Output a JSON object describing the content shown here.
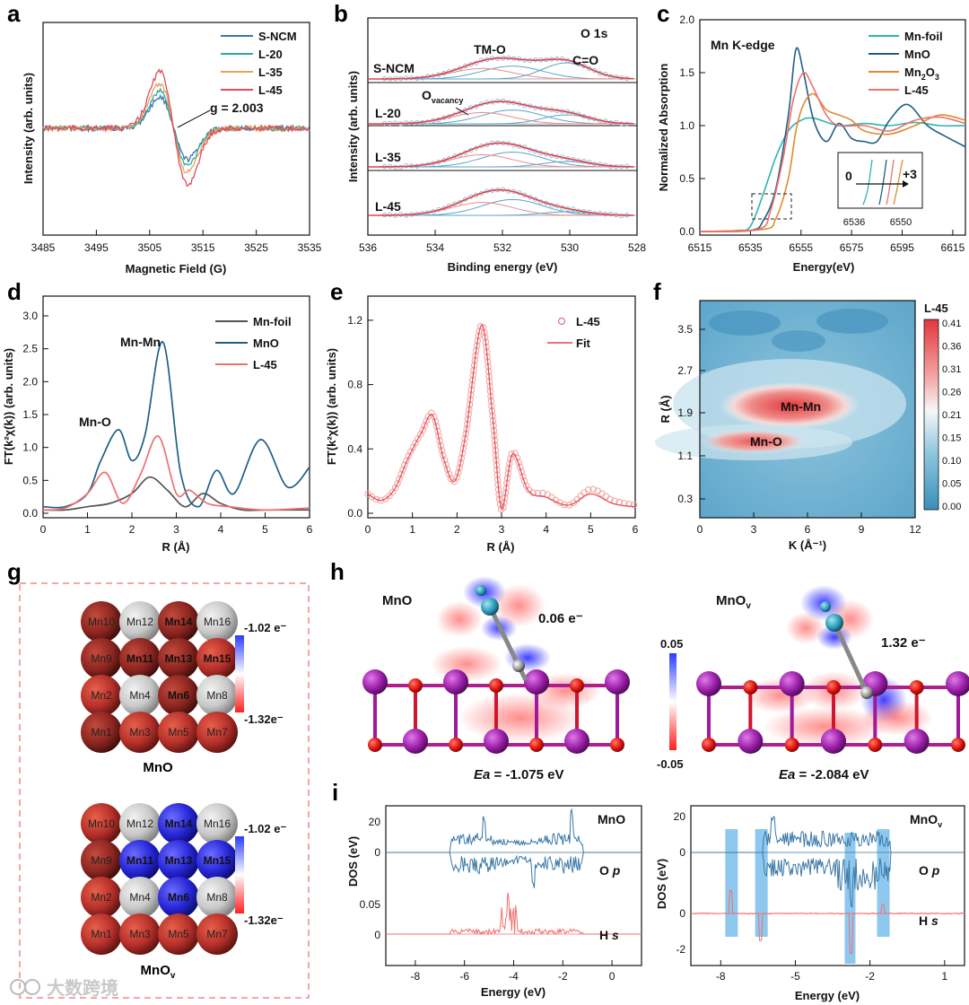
{
  "panels": {
    "a": {
      "label": "a",
      "xlabel": "Magnetic Field (G)",
      "ylabel": "Intensity (arb. units)",
      "xticks": [
        "3485",
        "3495",
        "3505",
        "3515",
        "3525",
        "3535"
      ],
      "legend": [
        "S-NCM",
        "L-20",
        "L-35",
        "L-45"
      ],
      "annotation": "g = 2.003"
    },
    "b": {
      "label": "b",
      "xlabel": "Binding energy (eV)",
      "ylabel": "Intensity (arb. units)",
      "xticks": [
        "536",
        "534",
        "532",
        "530",
        "528"
      ],
      "title": "O 1s",
      "samples": [
        "S-NCM",
        "L-20",
        "L-35",
        "L-45"
      ],
      "peak_tmo": "TM-O",
      "peak_co": "C=O",
      "vacancy": "O",
      "vacancy_sub": "vacancy"
    },
    "c": {
      "label": "c",
      "xlabel": "Energy(eV)",
      "ylabel": "Normalized Absorption",
      "xticks": [
        "6515",
        "6535",
        "6555",
        "6575",
        "6595",
        "6615"
      ],
      "yticks": [
        "0.0",
        "0.5",
        "1.0",
        "1.5",
        "2.0"
      ],
      "title": "Mn K-edge",
      "legend": [
        "Mn-foil",
        "MnO",
        "Mn",
        "L-45"
      ],
      "legend_mn2o3_sub2": "2",
      "legend_mn2o3_o": "O",
      "legend_mn2o3_sub3": "3",
      "inset_left": "0",
      "inset_right": "+3",
      "inset_ticks": [
        "6536",
        "6550"
      ]
    },
    "d": {
      "label": "d",
      "xlabel": "R (Å)",
      "ylabel": "FT(k²χ(k)) (arb. units)",
      "xticks": [
        "0",
        "1",
        "2",
        "3",
        "4",
        "5",
        "6"
      ],
      "yticks": [
        "0.0",
        "0.5",
        "1.0",
        "1.5",
        "2.0",
        "2.5",
        "3.0"
      ],
      "legend": [
        "Mn-foil",
        "MnO",
        "L-45"
      ],
      "peak1": "Mn-O",
      "peak2": "Mn-Mn"
    },
    "e": {
      "label": "e",
      "xlabel": "R (Å)",
      "ylabel": "FT(k²χ(k)) (arb. units)",
      "xticks": [
        "0",
        "1",
        "2",
        "3",
        "4",
        "5",
        "6"
      ],
      "yticks": [
        "0.0",
        "0.4",
        "0.8",
        "1.2"
      ],
      "legend": [
        "L-45",
        "Fit"
      ]
    },
    "f": {
      "label": "f",
      "xlabel": "K (Å⁻¹)",
      "ylabel": "R (Å)",
      "xticks": [
        "0",
        "3",
        "6",
        "9",
        "12"
      ],
      "yticks": [
        "3.5",
        "2.7",
        "1.9",
        "1.1",
        "0.3"
      ],
      "spot1": "Mn-Mn",
      "spot2": "Mn-O",
      "colorbar_title": "L-45",
      "colorbar_ticks": [
        "0.41",
        "0.36",
        "0.31",
        "0.26",
        "0.21",
        "0.15",
        "0.10",
        "0.05",
        "0.00"
      ]
    },
    "g": {
      "label": "g",
      "top_title": "MnO",
      "bottom_title": "MnO",
      "bottom_sub": "v",
      "scale_top": "-1.02 e⁻",
      "scale_bottom": "-1.32e⁻",
      "atoms": [
        "Mn10",
        "Mn12",
        "Mn14",
        "Mn16",
        "Mn9",
        "Mn11",
        "Mn13",
        "Mn15",
        "Mn2",
        "Mn4",
        "Mn6",
        "Mn8",
        "Mn1",
        "Mn3",
        "Mn5",
        "Mn7"
      ]
    },
    "h": {
      "label": "h",
      "left_title": "MnO",
      "right_title": "MnO",
      "right_sub": "v",
      "left_charge": "0.06 e⁻",
      "right_charge": "1.32 e⁻",
      "left_ea_label": "Ea",
      "left_ea_value": " = -1.075 eV",
      "right_ea_label": "Ea",
      "right_ea_value": " = -2.084 eV",
      "scale_top": "0.05",
      "scale_bottom": "-0.05"
    },
    "i": {
      "label": "i",
      "xlabel": "Energy (eV)",
      "ylabel": "DOS (eV)",
      "left_title": "MnO",
      "right_title": "MnO",
      "right_sub": "v",
      "op_label": "O ",
      "op_italic": "p",
      "hs_label": "H ",
      "hs_italic": "s",
      "xticks": [
        "-8",
        "-6",
        "-4",
        "-2",
        "0"
      ],
      "xticks_right": [
        "-8",
        "-5",
        "-2",
        "1"
      ],
      "left_yticks": [
        "20",
        "0",
        "0.05",
        "0"
      ],
      "right_yticks": [
        "20",
        "0",
        "0",
        "-2"
      ]
    }
  },
  "watermark": "大数跨境",
  "chart_data": [
    {
      "panel": "a",
      "type": "line",
      "title": "",
      "xlabel": "Magnetic Field (G)",
      "ylabel": "Intensity (arb. units)",
      "xlim": [
        3485,
        3535
      ],
      "series": [
        {
          "name": "S-NCM",
          "peak_amplitude": 0.55
        },
        {
          "name": "L-20",
          "peak_amplitude": 0.65
        },
        {
          "name": "L-35",
          "peak_amplitude": 0.78
        },
        {
          "name": "L-45",
          "peak_amplitude": 1.0
        }
      ],
      "center": 3509,
      "annotation": "g = 2.003"
    },
    {
      "panel": "c",
      "type": "line",
      "title": "Mn K-edge",
      "xlim": [
        6515,
        6620
      ],
      "ylim": [
        0,
        2.0
      ],
      "series": [
        {
          "name": "Mn-foil",
          "x": [
            6515,
            6530,
            6535,
            6540,
            6545,
            6550,
            6555,
            6560,
            6570,
            6580,
            6590,
            6600,
            6610,
            6620
          ],
          "y": [
            0.0,
            0.01,
            0.05,
            0.35,
            0.7,
            0.95,
            1.05,
            1.07,
            1.0,
            1.02,
            1.0,
            1.03,
            1.0,
            1.0
          ]
        },
        {
          "name": "MnO",
          "x": [
            6515,
            6535,
            6540,
            6545,
            6550,
            6553,
            6556,
            6560,
            6565,
            6570,
            6575,
            6580,
            6585,
            6590,
            6597,
            6605,
            6612,
            6620
          ],
          "y": [
            0.0,
            0.01,
            0.1,
            0.4,
            1.1,
            1.72,
            1.5,
            1.05,
            0.85,
            1.02,
            0.88,
            0.85,
            0.85,
            1.05,
            1.2,
            1.0,
            0.9,
            0.8
          ]
        },
        {
          "name": "Mn2O3",
          "x": [
            6515,
            6540,
            6545,
            6550,
            6553,
            6556,
            6560,
            6565,
            6570,
            6575,
            6580,
            6590,
            6600,
            6610,
            6620
          ],
          "y": [
            0.0,
            0.02,
            0.12,
            0.5,
            0.95,
            1.2,
            1.3,
            1.15,
            1.1,
            1.05,
            0.95,
            0.92,
            1.0,
            1.1,
            1.05
          ]
        },
        {
          "name": "L-45",
          "x": [
            6515,
            6538,
            6543,
            6548,
            6552,
            6556,
            6560,
            6565,
            6570,
            6580,
            6590,
            6600,
            6610,
            6620
          ],
          "y": [
            0.0,
            0.02,
            0.2,
            0.7,
            1.25,
            1.5,
            1.35,
            1.1,
            1.0,
            1.0,
            0.95,
            1.05,
            1.08,
            1.02
          ]
        }
      ]
    },
    {
      "panel": "d",
      "type": "line",
      "xlim": [
        0,
        6
      ],
      "ylim": [
        0,
        3.3
      ],
      "series": [
        {
          "name": "Mn-foil",
          "x": [
            0,
            0.5,
            1,
            1.5,
            2,
            2.4,
            2.8,
            3.2,
            3.6,
            4,
            4.5,
            5,
            5.5,
            6
          ],
          "y": [
            0.05,
            0.05,
            0.1,
            0.15,
            0.3,
            0.55,
            0.35,
            0.1,
            0.3,
            0.15,
            0.05,
            0.05,
            0.05,
            0.05
          ]
        },
        {
          "name": "MnO",
          "x": [
            0,
            0.5,
            1,
            1.3,
            1.7,
            2,
            2.3,
            2.7,
            3.1,
            3.5,
            3.9,
            4.3,
            4.9,
            5.5,
            6
          ],
          "y": [
            0.1,
            0.1,
            0.3,
            0.8,
            1.27,
            0.8,
            1.2,
            2.6,
            0.6,
            0.1,
            0.65,
            0.3,
            1.12,
            0.4,
            0.7
          ]
        },
        {
          "name": "L-45",
          "x": [
            0,
            0.5,
            1,
            1.4,
            1.8,
            2.2,
            2.6,
            3,
            3.3,
            3.7,
            4.2,
            5,
            6
          ],
          "y": [
            0.05,
            0.08,
            0.3,
            0.62,
            0.15,
            0.6,
            1.17,
            0.3,
            0.35,
            0.15,
            0.1,
            0.05,
            0.08
          ]
        }
      ],
      "annotations": [
        "Mn-O",
        "Mn-Mn"
      ]
    },
    {
      "panel": "e",
      "type": "line",
      "xlim": [
        0,
        6
      ],
      "ylim": [
        0,
        1.35
      ],
      "series": [
        {
          "name": "L-45",
          "x": [
            0,
            0.3,
            0.6,
            0.9,
            1.2,
            1.45,
            1.7,
            1.95,
            2.2,
            2.55,
            2.8,
            3,
            3.25,
            3.6,
            4,
            4.5,
            5,
            5.5,
            6
          ],
          "y": [
            0.12,
            0.08,
            0.15,
            0.35,
            0.5,
            0.62,
            0.35,
            0.2,
            0.5,
            1.17,
            0.6,
            0.02,
            0.38,
            0.15,
            0.12,
            0.05,
            0.15,
            0.08,
            0.05
          ]
        },
        {
          "name": "Fit",
          "x": [
            0,
            0.3,
            0.6,
            0.9,
            1.2,
            1.45,
            1.7,
            1.95,
            2.2,
            2.55,
            2.8,
            3,
            3.25,
            3.6,
            4,
            4.5,
            5,
            5.5,
            6
          ],
          "y": [
            0.12,
            0.08,
            0.15,
            0.34,
            0.5,
            0.61,
            0.34,
            0.2,
            0.5,
            1.17,
            0.6,
            0.03,
            0.37,
            0.14,
            0.1,
            0.05,
            0.12,
            0.06,
            0.04
          ]
        }
      ]
    }
  ]
}
